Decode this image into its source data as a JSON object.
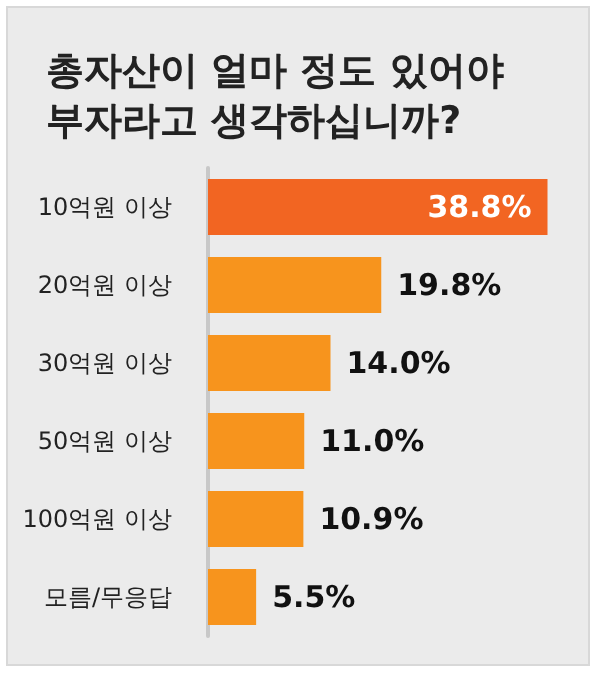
{
  "chart_data": {
    "type": "bar",
    "orientation": "horizontal",
    "title": "총자산이 얼마 정도 있어야\n부자라고 생각하십니까?",
    "categories": [
      "10억원 이상",
      "20억원 이상",
      "30억원 이상",
      "50억원 이상",
      "100억원 이상",
      "모름/무응답"
    ],
    "values": [
      38.8,
      19.8,
      14.0,
      11.0,
      10.9,
      5.5
    ],
    "colors": [
      "#f26522",
      "#f7941d",
      "#f7941d",
      "#f7941d",
      "#f7941d",
      "#f7941d"
    ],
    "value_labels": [
      "38.8%",
      "19.8%",
      "14.0%",
      "11.0%",
      "10.9%",
      "5.5%"
    ],
    "grid": false
  }
}
